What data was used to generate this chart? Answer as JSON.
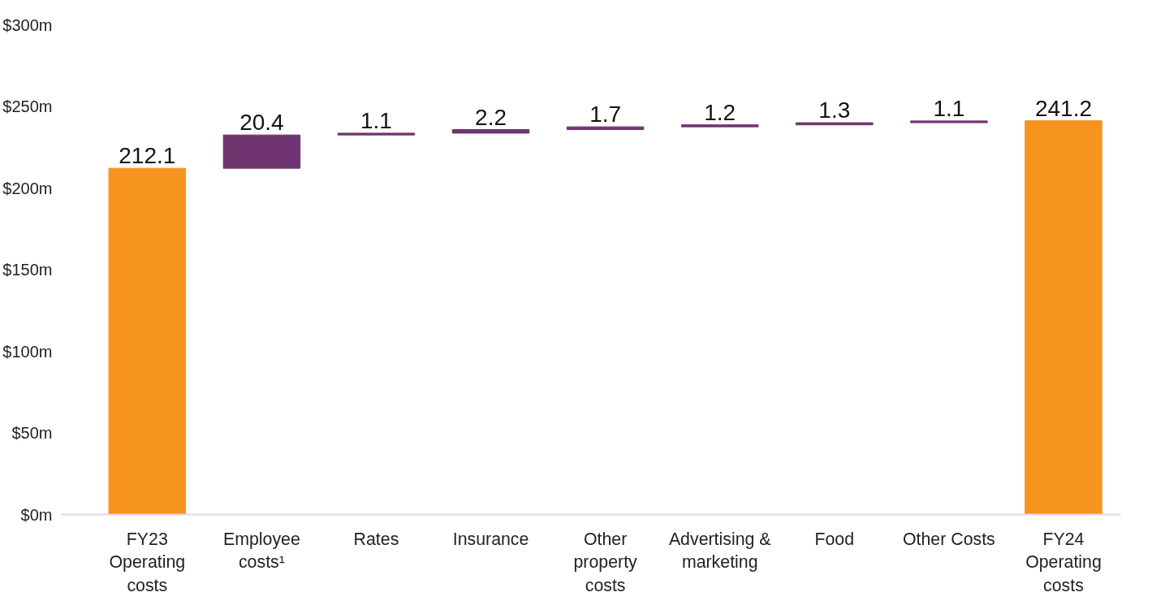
{
  "chart_data": {
    "type": "bar",
    "categories": [
      "FY23 Operating costs",
      "Employee costs¹",
      "Rates",
      "Insurance",
      "Other property costs",
      "Advertising & marketing",
      "Food",
      "Other Costs",
      "FY24 Operating costs"
    ],
    "values": [
      212.1,
      20.4,
      1.1,
      2.2,
      1.7,
      1.2,
      1.3,
      1.1,
      241.2
    ],
    "base": [
      0,
      212.1,
      232.5,
      233.6,
      235.8,
      237.5,
      238.7,
      240.0,
      0
    ],
    "colors": [
      "#f7941e",
      "#6f3470",
      "#6f3470",
      "#6f3470",
      "#6f3470",
      "#6f3470",
      "#6f3470",
      "#6f3470",
      "#f7941e"
    ],
    "data_labels": true,
    "ylim": [
      0,
      300
    ],
    "yticks": [
      {
        "value": 0,
        "label": "$0m"
      },
      {
        "value": 50,
        "label": "$50m"
      },
      {
        "value": 100,
        "label": "$100m"
      },
      {
        "value": 150,
        "label": "$150m"
      },
      {
        "value": 200,
        "label": "$200m"
      },
      {
        "value": 250,
        "label": "$250m"
      },
      {
        "value": 300,
        "label": "$300m"
      }
    ],
    "grid": false
  }
}
